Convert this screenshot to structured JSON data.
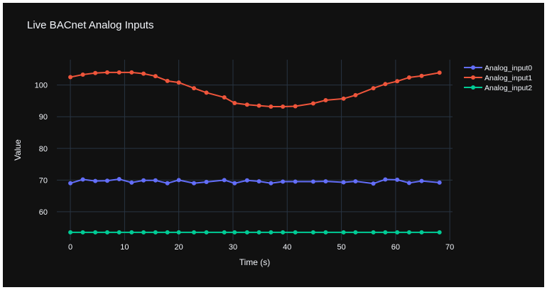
{
  "chart_data": {
    "type": "line",
    "title": "Live BACnet Analog Inputs",
    "xlabel": "Time (s)",
    "ylabel": "Value",
    "xlim": [
      -2.5,
      70.5
    ],
    "ylim": [
      51,
      108
    ],
    "xticks": [
      0,
      10,
      20,
      30,
      40,
      50,
      60,
      70
    ],
    "yticks": [
      60,
      70,
      80,
      90,
      100
    ],
    "grid": true,
    "legend_position": "top-right",
    "x": [
      0,
      2.3,
      4.6,
      6.8,
      9.0,
      11.3,
      13.5,
      15.7,
      17.9,
      20.0,
      22.8,
      25.1,
      28.4,
      30.3,
      32.6,
      34.8,
      37.0,
      39.2,
      41.5,
      44.8,
      47.1,
      50.4,
      52.6,
      55.9,
      58.1,
      60.3,
      62.5,
      64.8,
      68.1
    ],
    "series": [
      {
        "name": "Analog_input0",
        "color": "#636efa",
        "values": [
          69.0,
          70.2,
          69.7,
          69.8,
          70.3,
          69.2,
          69.9,
          69.9,
          69.0,
          70.0,
          69.0,
          69.4,
          70.0,
          69.0,
          69.9,
          69.6,
          69.0,
          69.5,
          69.5,
          69.5,
          69.6,
          69.3,
          69.6,
          68.9,
          70.2,
          70.1,
          69.1,
          69.7,
          69.2
        ]
      },
      {
        "name": "Analog_input1",
        "color": "#ef553b",
        "values": [
          102.5,
          103.3,
          103.8,
          104.0,
          104.0,
          104.0,
          103.6,
          102.8,
          101.3,
          100.8,
          99.0,
          97.6,
          96.1,
          94.3,
          93.8,
          93.5,
          93.2,
          93.2,
          93.3,
          94.2,
          95.2,
          95.7,
          96.8,
          99.0,
          100.3,
          101.2,
          102.4,
          102.9,
          103.9
        ]
      },
      {
        "name": "Analog_input2",
        "color": "#00cc96",
        "values": [
          53.5,
          53.5,
          53.5,
          53.5,
          53.5,
          53.5,
          53.5,
          53.5,
          53.5,
          53.5,
          53.5,
          53.5,
          53.5,
          53.5,
          53.5,
          53.5,
          53.5,
          53.5,
          53.5,
          53.5,
          53.5,
          53.5,
          53.5,
          53.5,
          53.5,
          53.5,
          53.5,
          53.5,
          53.5
        ]
      }
    ]
  }
}
